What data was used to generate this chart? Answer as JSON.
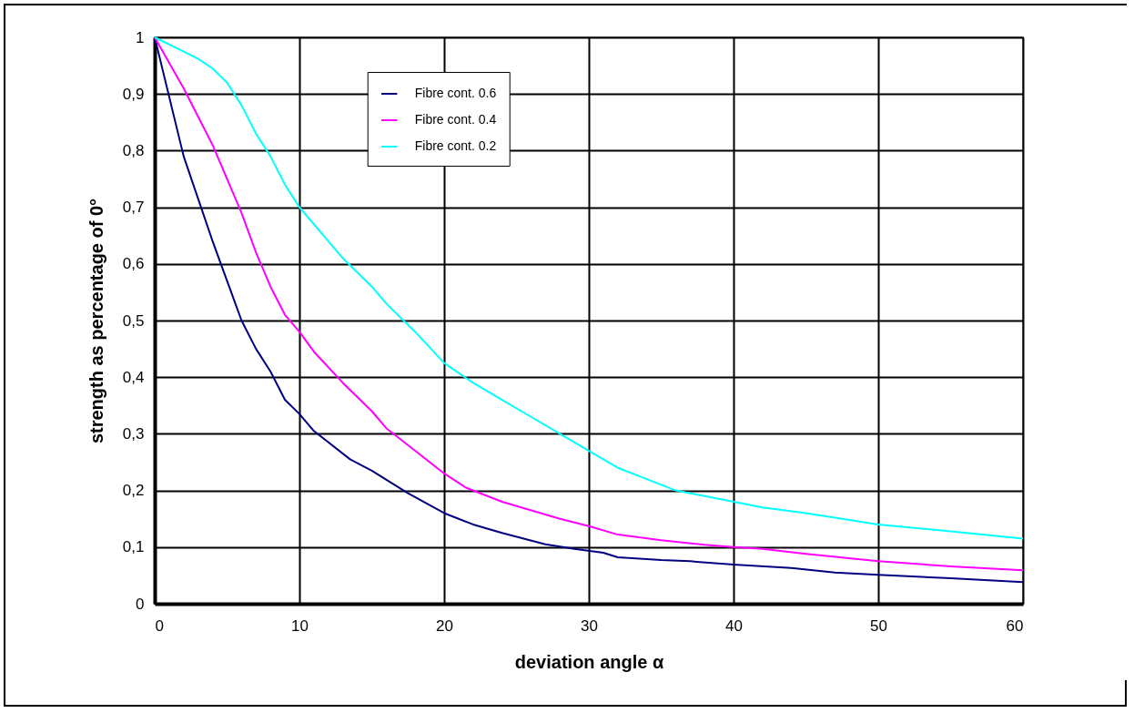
{
  "chart_data": {
    "type": "line",
    "xlabel": "deviation angle α",
    "ylabel": "strength as percentage of 0°",
    "xlim": [
      0,
      60
    ],
    "xticks": [
      0,
      10,
      20,
      30,
      40,
      50,
      60
    ],
    "ylim": [
      0,
      1
    ],
    "yticks": [
      0,
      {
        "value": 0.1,
        "label": "0,1"
      },
      {
        "value": 0.2,
        "label": "0,2"
      },
      {
        "value": 0.3,
        "label": "0,3"
      },
      {
        "value": 0.4,
        "label": "0,4"
      },
      {
        "value": 0.5,
        "label": "0,5"
      },
      {
        "value": 0.6,
        "label": "0,6"
      },
      {
        "value": 0.7,
        "label": "0,7"
      },
      {
        "value": 0.8,
        "label": "0,8"
      },
      {
        "value": 0.9,
        "label": "0,9"
      },
      1
    ],
    "grid": true,
    "legend": "top",
    "marker": "none",
    "line_style": "solid",
    "series": [
      {
        "name": "Fibre cont. 0.6",
        "color": "#000080",
        "x": [
          0,
          2,
          4,
          6,
          7,
          8,
          9,
          10,
          11,
          13.5,
          15,
          17.5,
          20,
          22,
          24,
          27,
          29,
          31,
          32,
          35,
          37,
          40,
          44,
          47,
          50,
          55,
          60
        ],
        "values": [
          1,
          0.79,
          0.64,
          0.5,
          0.45,
          0.41,
          0.36,
          0.335,
          0.305,
          0.255,
          0.235,
          0.195,
          0.16,
          0.14,
          0.125,
          0.105,
          0.097,
          0.09,
          0.082,
          0.077,
          0.075,
          0.069,
          0.063,
          0.055,
          0.051,
          0.045,
          0.038
        ]
      },
      {
        "name": "Fibre cont. 0.4",
        "color": "#ff00ff",
        "x": [
          0,
          2,
          4,
          5,
          6,
          7,
          8,
          9,
          10,
          11,
          13,
          15,
          16,
          18,
          20,
          21.5,
          24,
          28,
          30,
          32,
          35,
          38,
          40,
          42,
          45,
          50,
          55,
          60
        ],
        "values": [
          1,
          0.91,
          0.81,
          0.75,
          0.69,
          0.62,
          0.56,
          0.51,
          0.48,
          0.445,
          0.39,
          0.34,
          0.31,
          0.27,
          0.23,
          0.205,
          0.18,
          0.15,
          0.137,
          0.122,
          0.112,
          0.104,
          0.1,
          0.097,
          0.088,
          0.075,
          0.066,
          0.059
        ]
      },
      {
        "name": "Fibre cont. 0.2",
        "color": "#00ffff",
        "x": [
          0,
          2,
          3,
          4,
          5,
          6,
          7,
          8,
          9,
          10,
          11,
          13,
          15,
          16,
          18,
          20,
          22,
          24,
          26,
          28,
          30,
          32,
          34,
          36,
          38,
          40,
          42,
          45,
          50,
          55,
          60
        ],
        "values": [
          1,
          0.975,
          0.962,
          0.945,
          0.92,
          0.88,
          0.83,
          0.79,
          0.74,
          0.7,
          0.67,
          0.61,
          0.56,
          0.53,
          0.48,
          0.425,
          0.39,
          0.36,
          0.33,
          0.3,
          0.27,
          0.24,
          0.22,
          0.2,
          0.19,
          0.18,
          0.17,
          0.16,
          0.14,
          0.128,
          0.115
        ]
      }
    ]
  }
}
